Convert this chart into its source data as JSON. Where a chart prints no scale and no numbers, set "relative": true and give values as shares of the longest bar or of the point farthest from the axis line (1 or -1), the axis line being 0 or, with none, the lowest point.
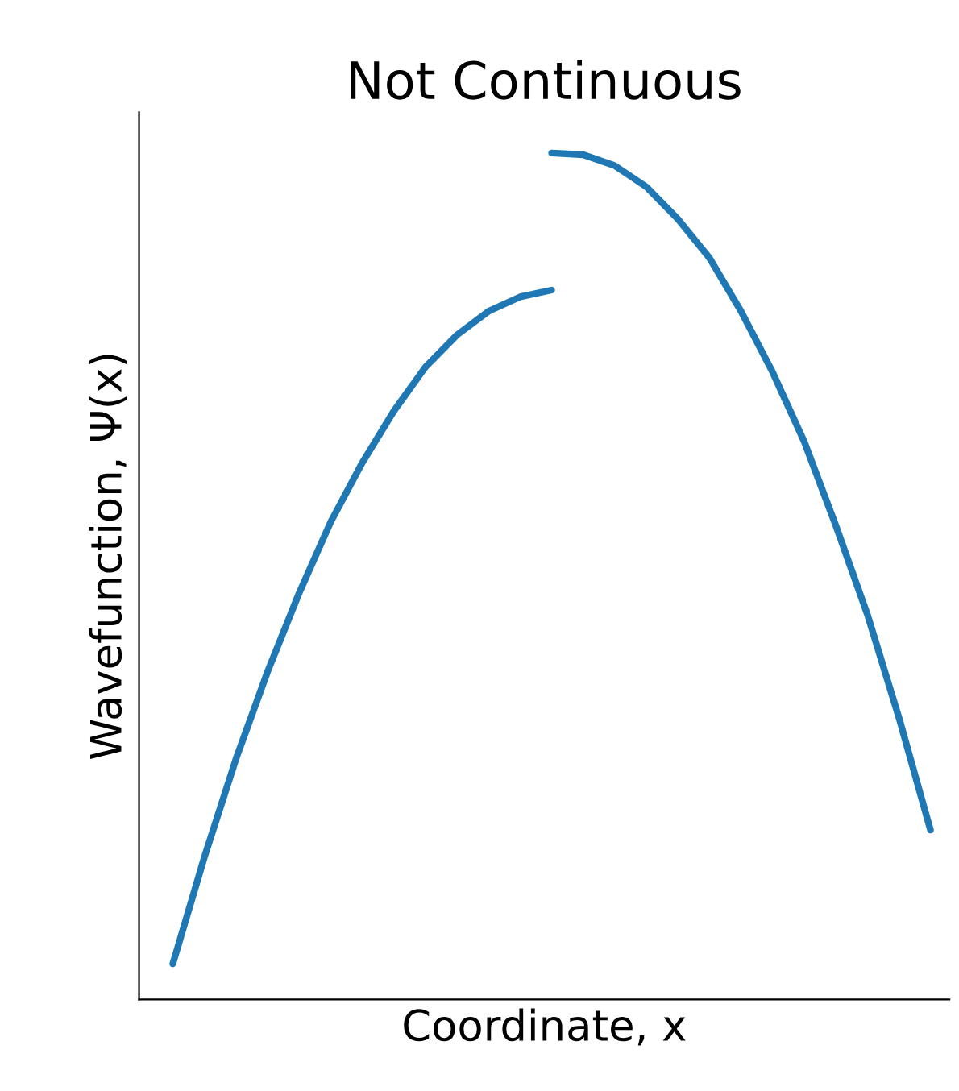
{
  "chart_data": {
    "type": "line",
    "title": "Not Continuous",
    "xlabel": "Coordinate, x",
    "ylabel": "Wavefunction, Ψ(x)",
    "relative": true,
    "tick_labels": false,
    "categories": [
      null,
      null,
      null,
      null,
      null,
      null,
      null,
      null,
      null,
      null,
      null,
      null,
      null,
      null,
      null,
      null,
      null,
      null,
      null,
      null,
      null,
      null,
      null,
      null,
      null
    ],
    "series": [
      {
        "color": "#1f77b4",
        "values": [
          0.042,
          0.168,
          0.284,
          0.387,
          0.48,
          0.564,
          0.634,
          0.695,
          0.747,
          0.785,
          0.813,
          0.83,
          0.838,
          null,
          null,
          null,
          null,
          null,
          null,
          null,
          null,
          null,
          null,
          null,
          null
        ]
      },
      {
        "color": "#1f77b4",
        "values": [
          null,
          null,
          null,
          null,
          null,
          null,
          null,
          null,
          null,
          null,
          null,
          null,
          1.0,
          0.998,
          0.985,
          0.96,
          0.922,
          0.876,
          0.813,
          0.741,
          0.659,
          0.56,
          0.455,
          0.333,
          0.2
        ]
      }
    ]
  }
}
